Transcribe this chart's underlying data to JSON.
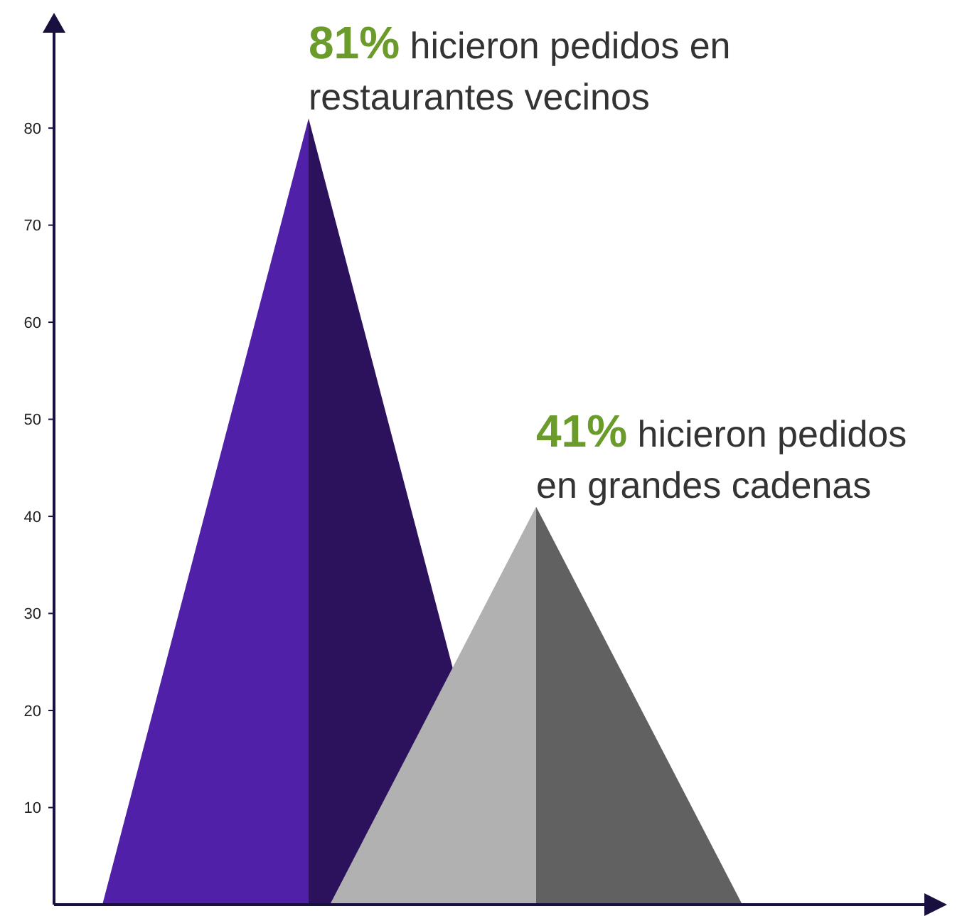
{
  "chart_data": {
    "type": "bar",
    "categories": [
      null,
      null
    ],
    "values": [
      81,
      41
    ],
    "colors": [
      "#5020a8",
      "#b1b1b1"
    ],
    "value_labels": [
      "81%",
      "41%"
    ],
    "annotations": [
      "hicieron pedidos en restaurantes vecinos",
      "hicieron pedidos en grandes cadenas"
    ],
    "ylim": [
      0,
      91
    ],
    "yticks": [
      10,
      20,
      30,
      40,
      50,
      60,
      70,
      80
    ],
    "grid": false
  }
}
